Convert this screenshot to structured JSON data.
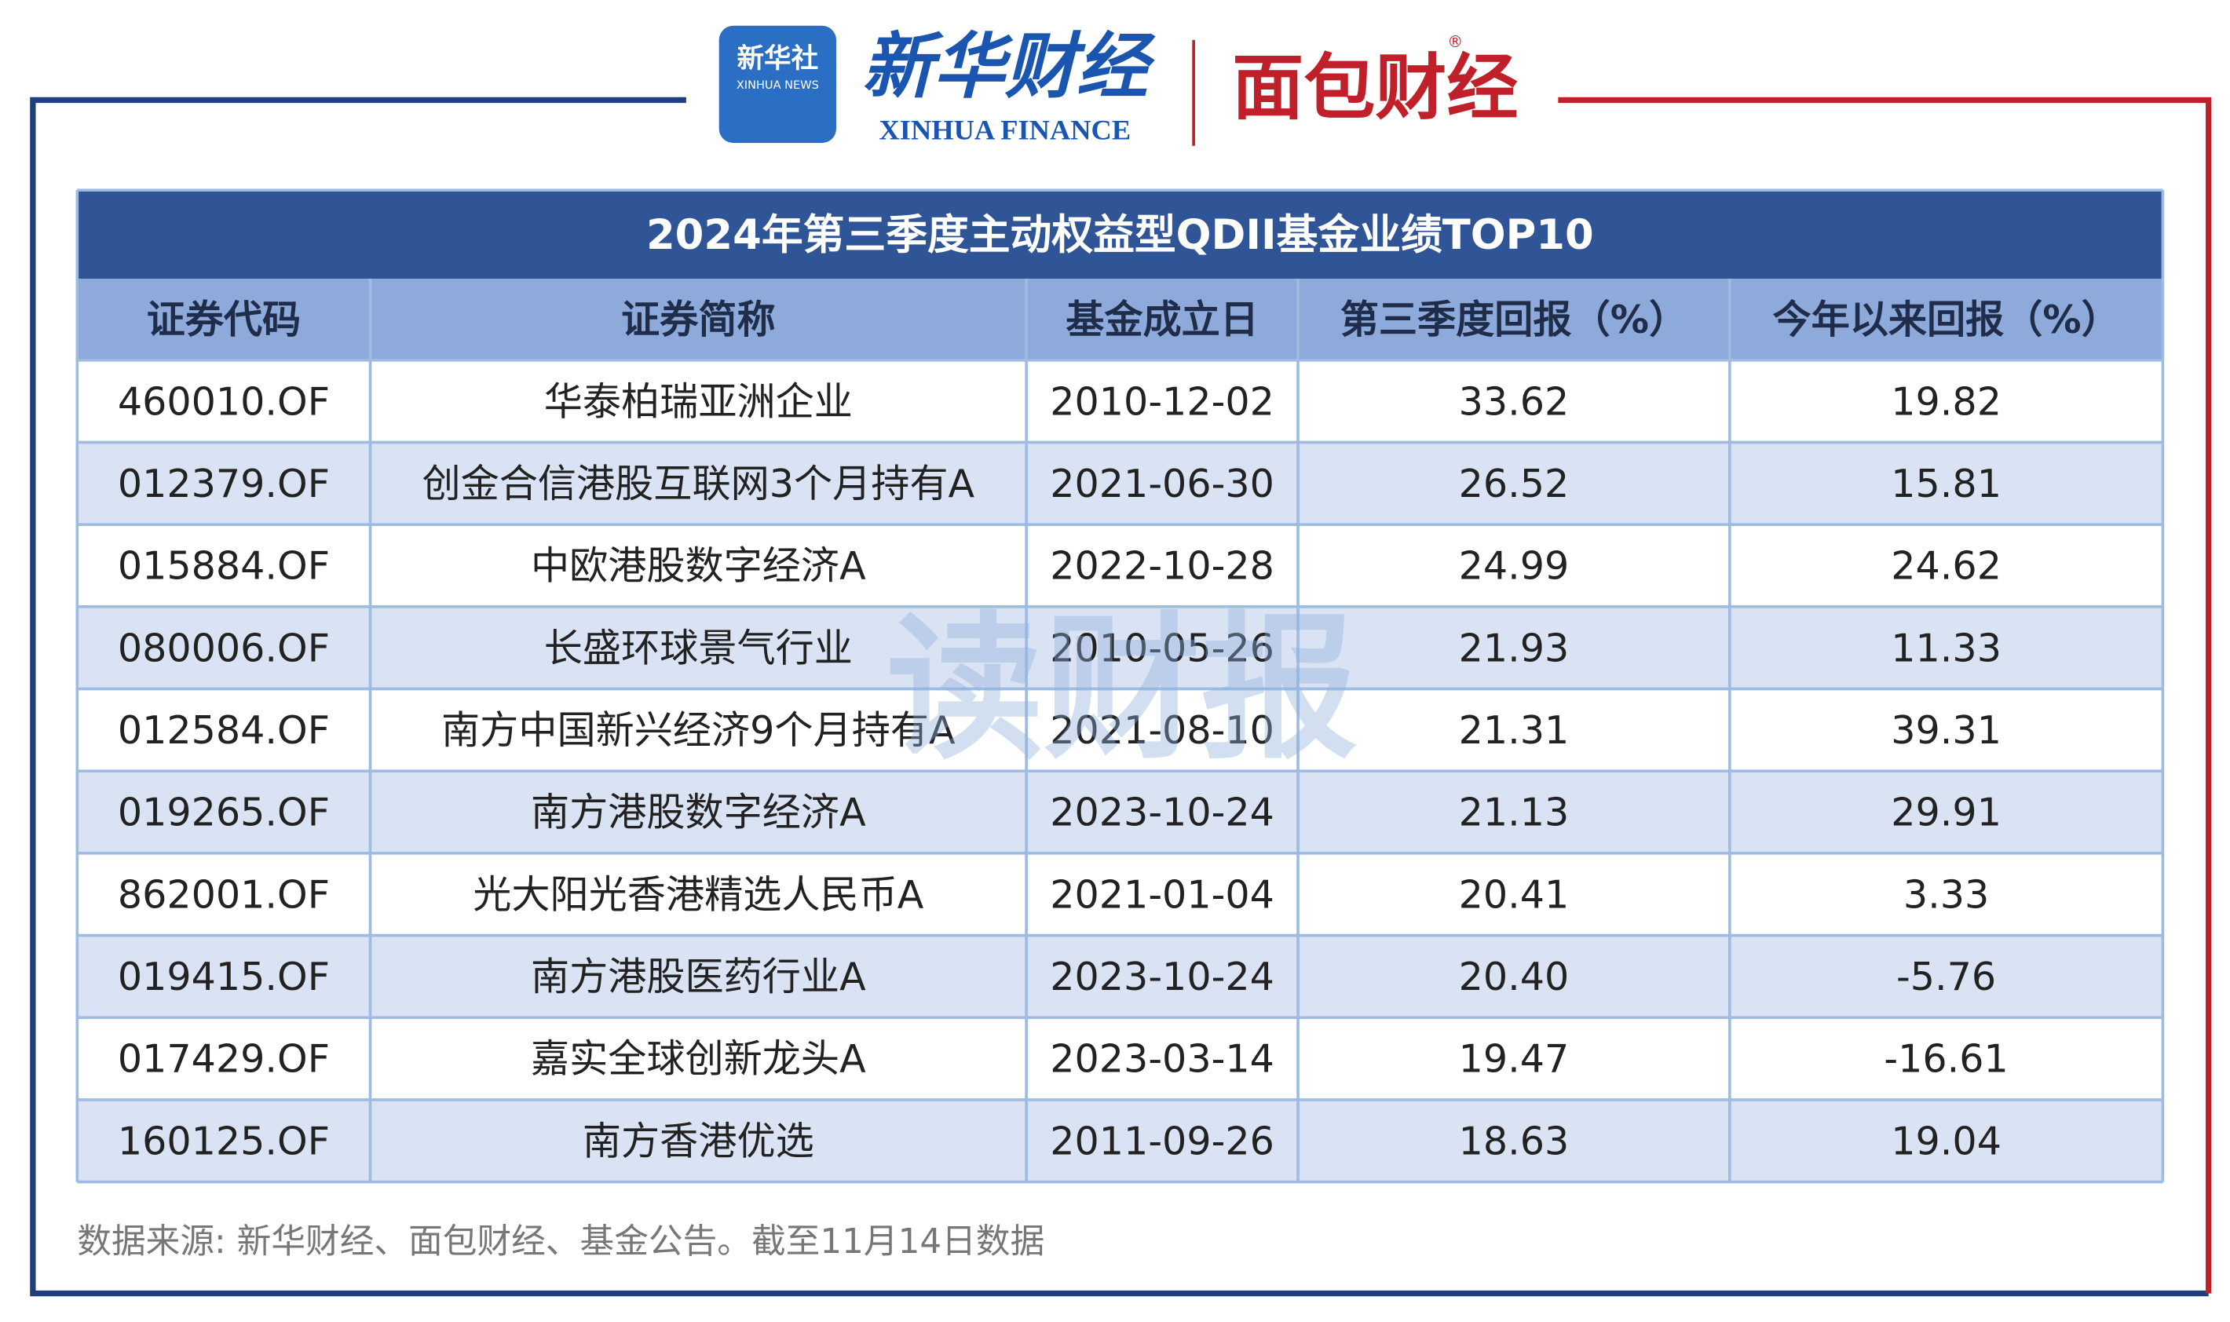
{
  "header": {
    "xinhua_news": "新华社",
    "xinhua_news_en": "XINHUA NEWS",
    "xinhua_finance": "新华财经",
    "xinhua_finance_en": "XINHUA FINANCE",
    "mianbao": "面包财经",
    "registered": "®"
  },
  "table": {
    "title": "2024年第三季度主动权益型QDII基金业绩TOP10",
    "columns": [
      "证券代码",
      "证券简称",
      "基金成立日",
      "第三季度回报（%）",
      "今年以来回报（%）"
    ],
    "rows": [
      [
        "460010.OF",
        "华泰柏瑞亚洲企业",
        "2010-12-02",
        "33.62",
        "19.82"
      ],
      [
        "012379.OF",
        "创金合信港股互联网3个月持有A",
        "2021-06-30",
        "26.52",
        "15.81"
      ],
      [
        "015884.OF",
        "中欧港股数字经济A",
        "2022-10-28",
        "24.99",
        "24.62"
      ],
      [
        "080006.OF",
        "长盛环球景气行业",
        "2010-05-26",
        "21.93",
        "11.33"
      ],
      [
        "012584.OF",
        "南方中国新兴经济9个月持有A",
        "2021-08-10",
        "21.31",
        "39.31"
      ],
      [
        "019265.OF",
        "南方港股数字经济A",
        "2023-10-24",
        "21.13",
        "29.91"
      ],
      [
        "862001.OF",
        "光大阳光香港精选人民币A",
        "2021-01-04",
        "20.41",
        "3.33"
      ],
      [
        "019415.OF",
        "南方港股医药行业A",
        "2023-10-24",
        "20.40",
        "-5.76"
      ],
      [
        "017429.OF",
        "嘉实全球创新龙头A",
        "2023-03-14",
        "19.47",
        "-16.61"
      ],
      [
        "160125.OF",
        "南方香港优选",
        "2011-09-26",
        "18.63",
        "19.04"
      ]
    ]
  },
  "watermark": "读财报",
  "footer": "数据来源: 新华财经、面包财经、基金公告。截至11月14日数据"
}
